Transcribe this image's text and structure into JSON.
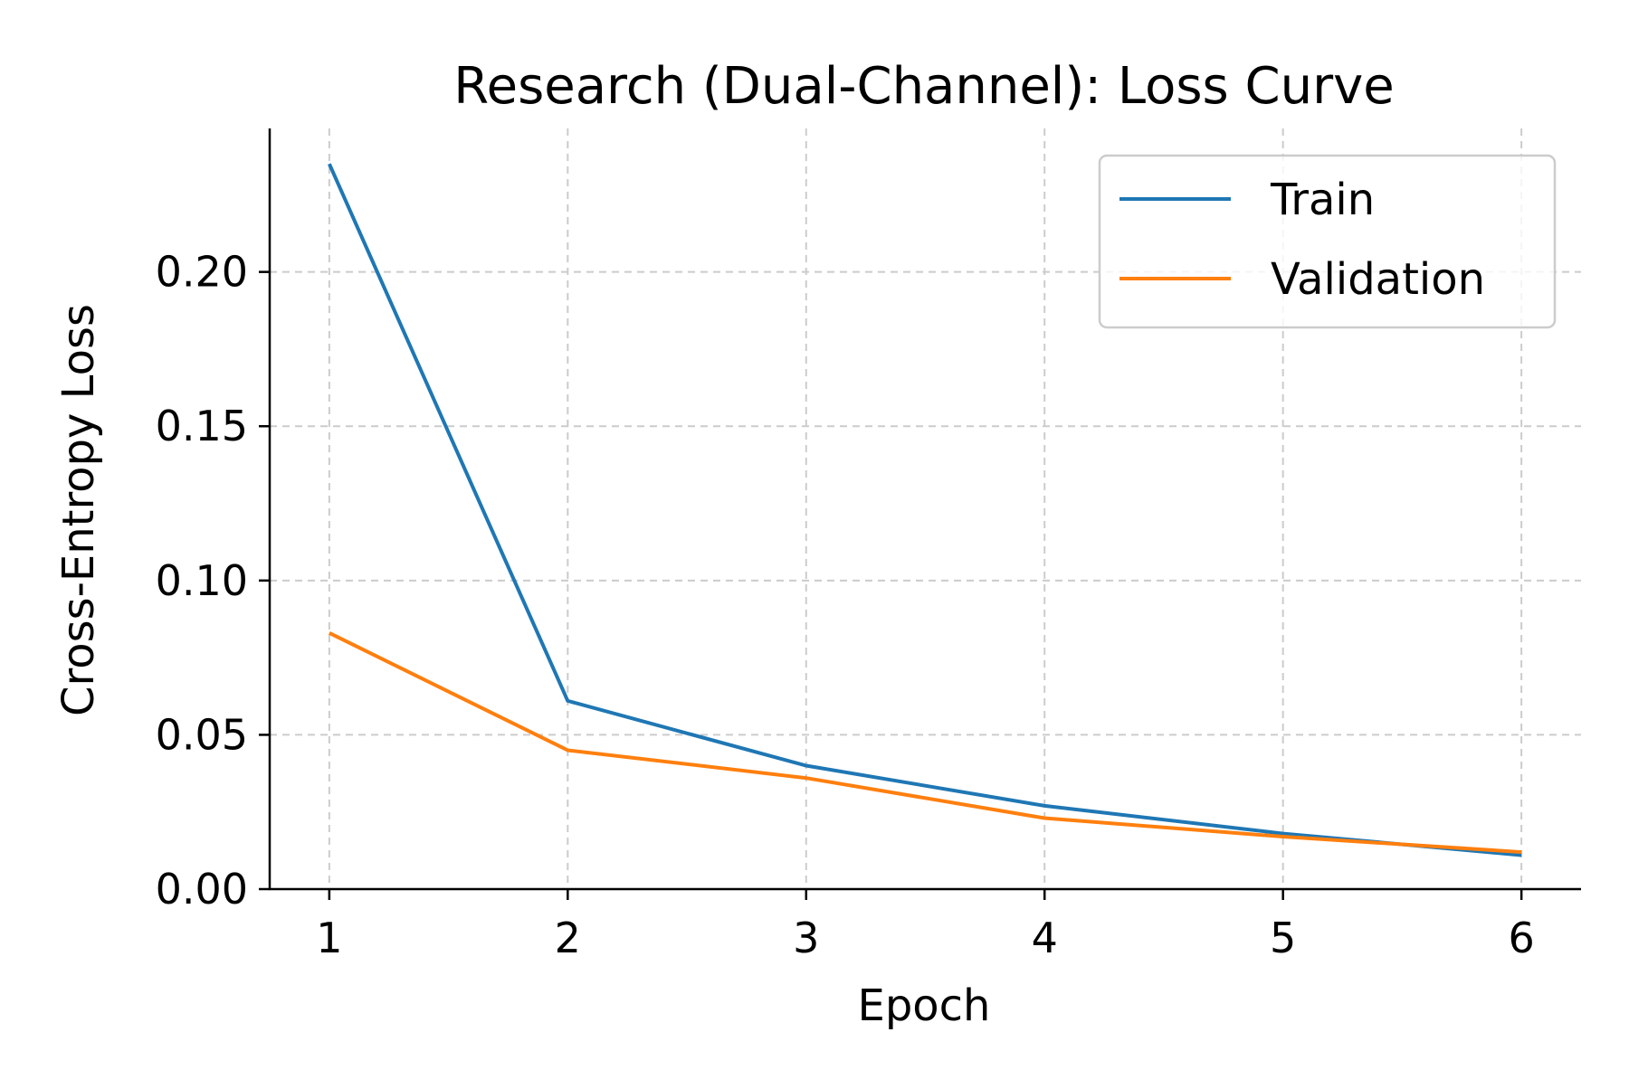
{
  "chart_data": {
    "type": "line",
    "title": "Research (Dual-Channel): Loss Curve",
    "xlabel": "Epoch",
    "ylabel": "Cross-Entropy Loss",
    "x": [
      1,
      2,
      3,
      4,
      5,
      6
    ],
    "xlim": [
      0.75,
      6.25
    ],
    "ylim": [
      0,
      0.2465
    ],
    "xticks": [
      1,
      2,
      3,
      4,
      5,
      6
    ],
    "xtick_labels": [
      "1",
      "2",
      "3",
      "4",
      "5",
      "6"
    ],
    "yticks": [
      0,
      0.05,
      0.1,
      0.15,
      0.2
    ],
    "ytick_labels": [
      "0.00",
      "0.05",
      "0.10",
      "0.15",
      "0.20"
    ],
    "grid": true,
    "legend_position": "top-right",
    "series": [
      {
        "name": "Train",
        "color": "#1f77b4",
        "values": [
          0.235,
          0.061,
          0.04,
          0.027,
          0.018,
          0.011
        ]
      },
      {
        "name": "Validation",
        "color": "#ff7f0e",
        "values": [
          0.083,
          0.045,
          0.036,
          0.023,
          0.017,
          0.012
        ]
      }
    ]
  }
}
